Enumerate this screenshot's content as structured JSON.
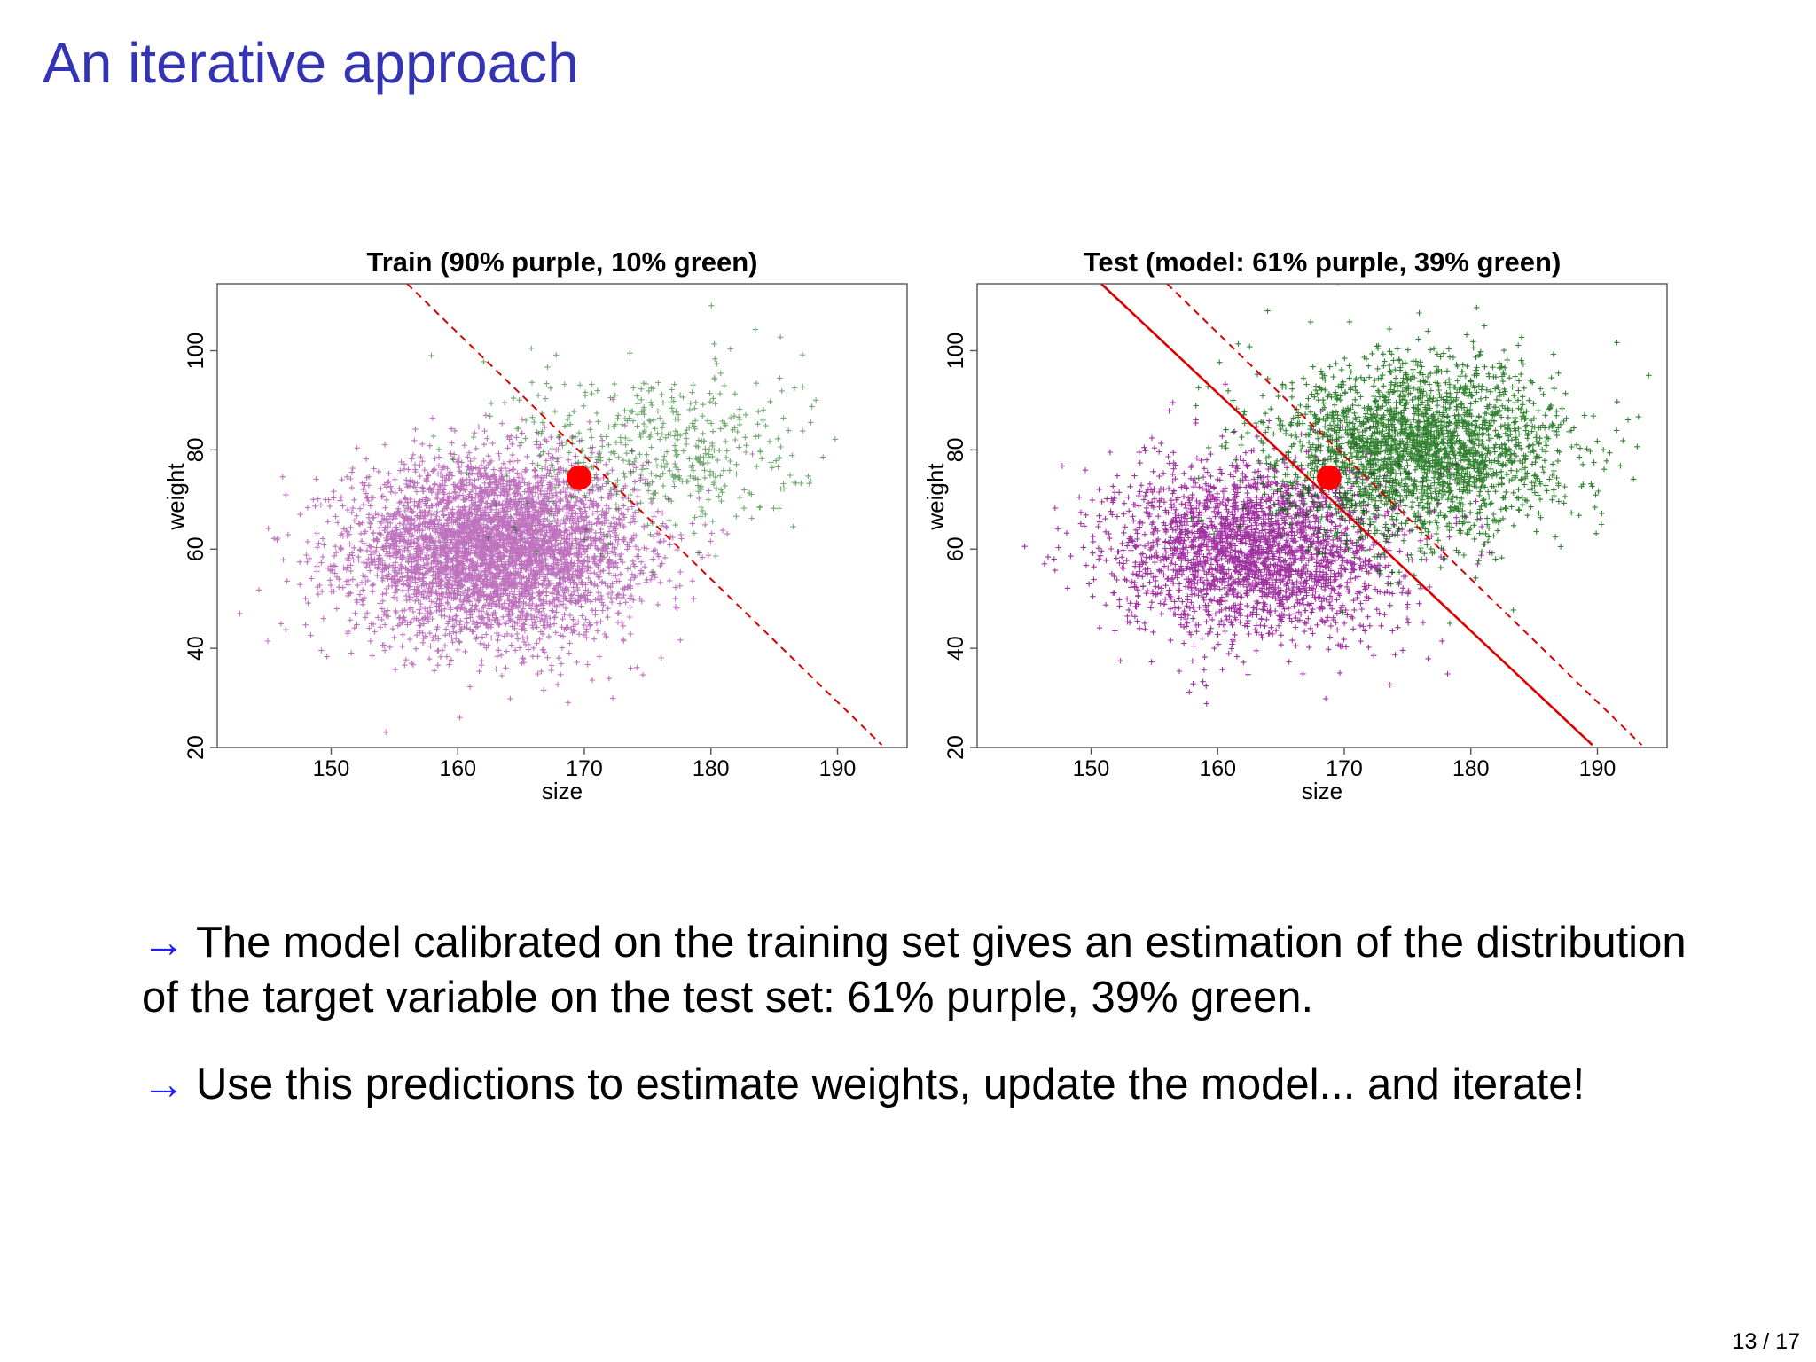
{
  "slide": {
    "title": "An iterative approach",
    "page_number": "13 / 17"
  },
  "bullets": [
    {
      "arrow": "→",
      "text": "The model calibrated on the training set gives an estimation of the distribution of the target variable on the test set: 61% purple, 39% green."
    },
    {
      "arrow": "→",
      "text": "Use this predictions to estimate weights, update the model... and iterate!"
    }
  ],
  "colors": {
    "title": "#3333b3",
    "arrow": "#2020ee",
    "purple": "#8b008b",
    "green": "#006400",
    "red": "#ff0000",
    "boundary": "#dd0000"
  },
  "chart_data": [
    {
      "type": "scatter",
      "title": "Train (90% purple, 10% green)",
      "xlabel": "size",
      "ylabel": "weight",
      "xlim": [
        141,
        195.5
      ],
      "ylim": [
        20,
        113.5
      ],
      "xticks": [
        150,
        160,
        170,
        180,
        190
      ],
      "yticks": [
        20,
        40,
        60,
        80,
        100
      ],
      "grid": false,
      "series": [
        {
          "color": "#8b008b",
          "marker": "+",
          "count": 4500,
          "center": [
            163,
            60
          ],
          "spread": [
            5.6,
            8.8
          ]
        },
        {
          "color": "#006400",
          "marker": "+",
          "count": 500,
          "center": [
            176,
            80
          ],
          "spread": [
            5.6,
            8.8
          ]
        }
      ],
      "point": {
        "x": 169.6,
        "y": 74.4,
        "color": "#ff0000"
      },
      "lines": [
        {
          "style": "dashed",
          "x": [
            156,
            193.5
          ],
          "y": [
            113.5,
            20.5
          ],
          "color": "#dd0000"
        }
      ]
    },
    {
      "type": "scatter",
      "title": "Test (model: 61% purple, 39% green)",
      "xlabel": "size",
      "ylabel": "weight",
      "xlim": [
        141,
        195.5
      ],
      "ylim": [
        20,
        113.5
      ],
      "xticks": [
        150,
        160,
        170,
        180,
        190
      ],
      "yticks": [
        20,
        40,
        60,
        80,
        100
      ],
      "grid": false,
      "series": [
        {
          "color": "#8b008b",
          "marker": "+",
          "count": 2500,
          "center": [
            163,
            60
          ],
          "spread": [
            5.6,
            8.8
          ]
        },
        {
          "color": "#006400",
          "marker": "+",
          "count": 2500,
          "center": [
            176,
            80
          ],
          "spread": [
            5.6,
            8.8
          ]
        }
      ],
      "point": {
        "x": 168.8,
        "y": 74.4,
        "color": "#ff0000"
      },
      "lines": [
        {
          "style": "solid",
          "x": [
            150.8,
            189.6
          ],
          "y": [
            113.5,
            20.5
          ],
          "color": "#dd0000"
        },
        {
          "style": "dashed",
          "x": [
            156,
            193.5
          ],
          "y": [
            113.5,
            20.5
          ],
          "color": "#dd0000"
        }
      ]
    }
  ]
}
